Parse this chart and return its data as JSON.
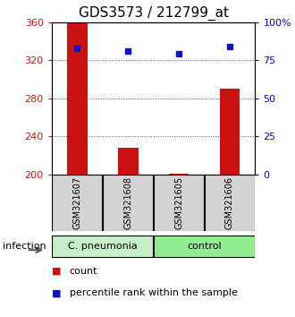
{
  "title": "GDS3573 / 212799_at",
  "samples": [
    "GSM321607",
    "GSM321608",
    "GSM321605",
    "GSM321606"
  ],
  "counts": [
    360,
    228,
    201,
    290
  ],
  "percentiles": [
    83,
    81,
    79,
    84
  ],
  "ylim_left": [
    200,
    360
  ],
  "ylim_right": [
    0,
    100
  ],
  "yticks_left": [
    200,
    240,
    280,
    320,
    360
  ],
  "yticks_right": [
    0,
    25,
    50,
    75,
    100
  ],
  "ytick_labels_right": [
    "0",
    "25",
    "50",
    "75",
    "100%"
  ],
  "bar_color": "#cc1111",
  "dot_color": "#1111cc",
  "groups": [
    {
      "label": "C. pneumonia",
      "indices": [
        0,
        1
      ],
      "color": "#c8f0c8"
    },
    {
      "label": "control",
      "indices": [
        2,
        3
      ],
      "color": "#90ee90"
    }
  ],
  "sample_box_color": "#d3d3d3",
  "group_label": "infection",
  "legend_count_label": "count",
  "legend_pct_label": "percentile rank within the sample",
  "grid_color": "#555555",
  "background_color": "#ffffff",
  "title_fontsize": 11,
  "axis_label_color_left": "#cc1111",
  "axis_label_color_right": "#0000cc"
}
